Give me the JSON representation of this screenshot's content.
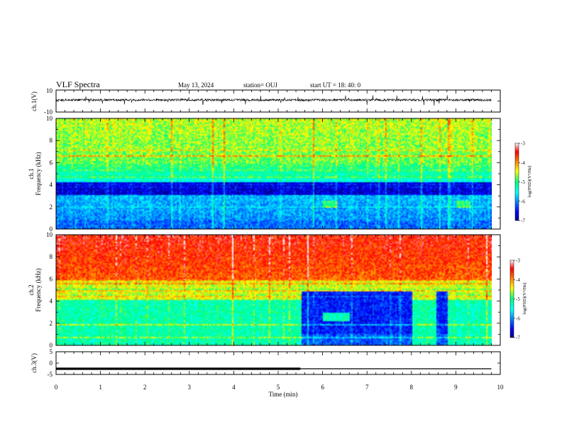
{
  "header": {
    "title": "VLF Spectra",
    "date": "May 13, 2024",
    "station": "station= OUJ",
    "start": "start  UT =   18: 40: 0"
  },
  "chart_data": [
    {
      "type": "line",
      "panel": "ch1-waveform",
      "ylabel": "ch.1(V)",
      "ylim": [
        -10,
        10
      ],
      "yticks": [
        10,
        -10
      ],
      "xlim": [
        0,
        10
      ],
      "baseline": 1,
      "noise_amplitude": 1,
      "data_end_min": 9.8
    },
    {
      "type": "heatmap",
      "panel": "ch1-spectrogram",
      "ylabel_line1": "ch.1",
      "ylabel_line2": "Frequency  (kHz)",
      "ylim": [
        0,
        10
      ],
      "yticks": [
        0,
        2,
        4,
        6,
        8,
        10
      ],
      "xlim": [
        0,
        10
      ],
      "data_end_min": 9.8,
      "colorbar": {
        "label": "log(PSD)(V²/Hz)",
        "range": [
          -7,
          -3
        ],
        "ticks": [
          -3,
          -4,
          -5,
          -6,
          -7
        ]
      }
    },
    {
      "type": "heatmap",
      "panel": "ch2-spectrogram",
      "ylabel_line1": "ch.2",
      "ylabel_line2": "Frequency  (kHz)",
      "ylim": [
        0,
        10
      ],
      "yticks": [
        0,
        2,
        4,
        6,
        8,
        10
      ],
      "xlim": [
        0,
        10
      ],
      "data_end_min": 9.8,
      "colorbar": {
        "label": "log(PSD)(V²/Hz)",
        "range": [
          -7,
          -3
        ],
        "ticks": [
          -3,
          -4,
          -5,
          -6,
          -7
        ]
      }
    },
    {
      "type": "line",
      "panel": "ch3-waveform",
      "ylabel": "ch.3(V)",
      "ylim": [
        -5,
        5
      ],
      "yticks": [
        5,
        0,
        -5
      ],
      "xlim": [
        0,
        10
      ],
      "xlabel": "Time  (min)",
      "xticks": [
        0,
        1,
        2,
        3,
        4,
        5,
        6,
        7,
        8,
        9,
        10
      ],
      "level": -2.5,
      "thick_segment_end_min": 5.5,
      "data_end_min": 9.8
    }
  ]
}
